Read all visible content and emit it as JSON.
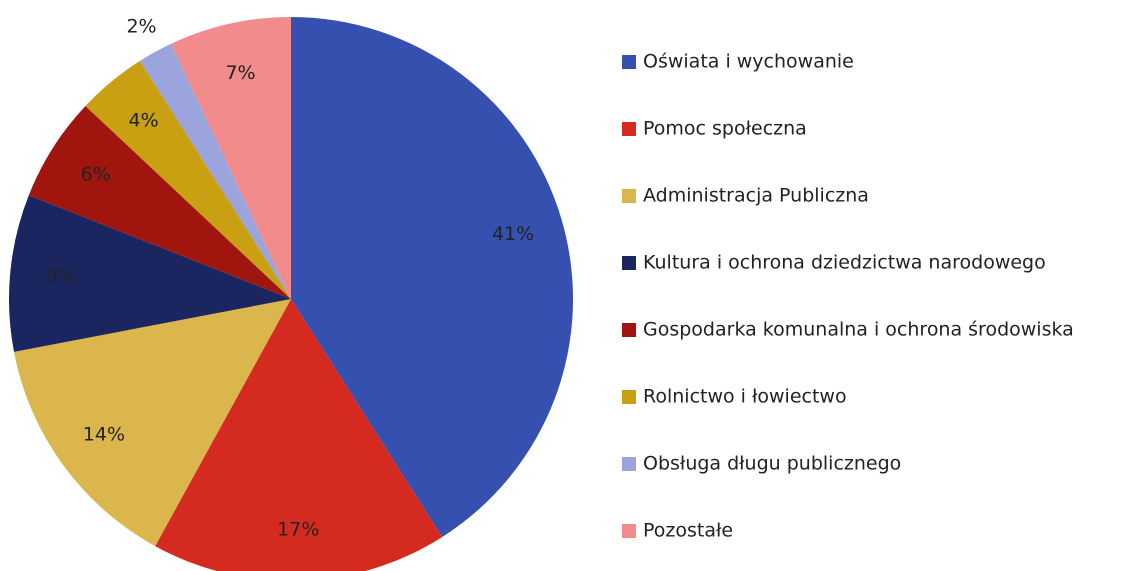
{
  "chart_data": {
    "type": "pie",
    "categories": [
      "Oświata i wychowanie",
      "Pomoc społeczna",
      "Administracja Publiczna",
      "Kultura i ochrona dziedzictwa narodowego",
      "Gospodarka komunalna i ochrona środowiska",
      "Rolnictwo i łowiectwo",
      "Obsługa długu publicznego",
      "Pozostałe"
    ],
    "values": [
      41,
      17,
      14,
      9,
      6,
      4,
      2,
      7
    ],
    "value_labels": [
      "41%",
      "17%",
      "14%",
      "9%",
      "6%",
      "4%",
      "2%",
      "7%"
    ],
    "colors": [
      "#3550ae",
      "#d42a20",
      "#dbb64c",
      "#1b2661",
      "#a1150f",
      "#c9a011",
      "#9ba4dc",
      "#f28b8b"
    ],
    "legend": "right"
  }
}
